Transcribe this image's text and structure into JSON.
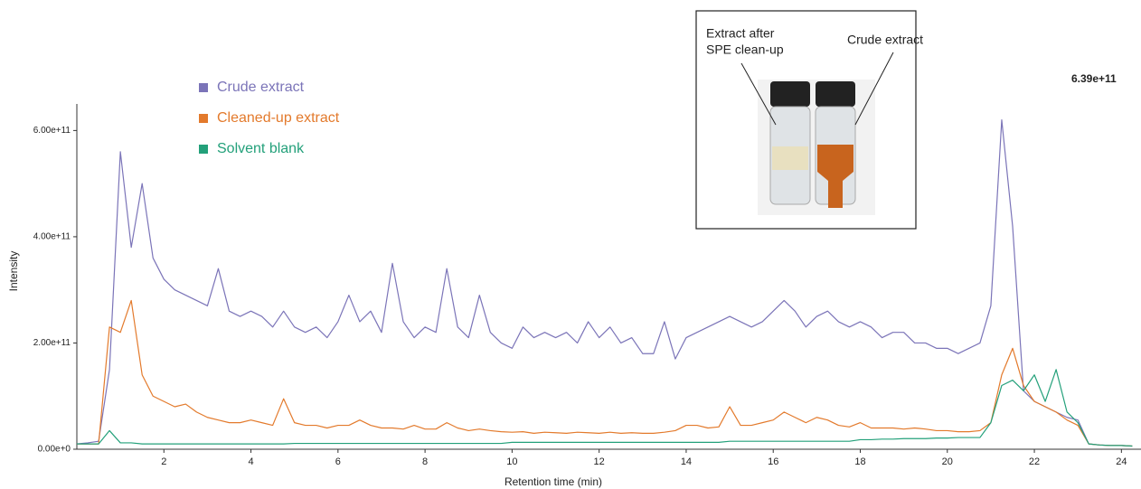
{
  "chart_data": {
    "type": "line",
    "x_label": "Retention time (min)",
    "y_label": "Intensity",
    "annotations": [
      "6.39e+11",
      "Extract after",
      "SPE clean-up",
      "Crude extract"
    ],
    "legend": "upper left",
    "x": [
      0,
      0.25,
      0.5,
      0.75,
      1,
      1.25,
      1.5,
      1.75,
      2,
      2.25,
      2.5,
      2.75,
      3,
      3.25,
      3.5,
      3.75,
      4,
      4.25,
      4.5,
      4.75,
      5,
      5.25,
      5.5,
      5.75,
      6,
      6.25,
      6.5,
      6.75,
      7,
      7.25,
      7.5,
      7.75,
      8,
      8.25,
      8.5,
      8.75,
      9,
      9.25,
      9.5,
      9.75,
      10,
      10.25,
      10.5,
      10.75,
      11,
      11.25,
      11.5,
      11.75,
      12,
      12.25,
      12.5,
      12.75,
      13,
      13.25,
      13.5,
      13.75,
      14,
      14.25,
      14.5,
      14.75,
      15,
      15.25,
      15.5,
      15.75,
      16,
      16.25,
      16.5,
      16.75,
      17,
      17.25,
      17.5,
      17.75,
      18,
      18.25,
      18.5,
      18.75,
      19,
      19.25,
      19.5,
      19.75,
      20,
      20.25,
      20.5,
      20.75,
      21,
      21.25,
      21.5,
      21.75,
      22,
      22.25,
      22.5,
      22.75,
      23,
      23.25,
      23.5,
      23.75,
      24,
      24.25
    ],
    "series": [
      {
        "name": "Crude extract",
        "color": "#7b74b8",
        "values": [
          10000000000.0,
          12000000000.0,
          15000000000.0,
          150000000000.0,
          560000000000.0,
          380000000000.0,
          500000000000.0,
          360000000000.0,
          320000000000.0,
          300000000000.0,
          290000000000.0,
          280000000000.0,
          270000000000.0,
          340000000000.0,
          260000000000.0,
          250000000000.0,
          260000000000.0,
          250000000000.0,
          230000000000.0,
          260000000000.0,
          230000000000.0,
          220000000000.0,
          230000000000.0,
          210000000000.0,
          240000000000.0,
          290000000000.0,
          240000000000.0,
          260000000000.0,
          220000000000.0,
          350000000000.0,
          240000000000.0,
          210000000000.0,
          230000000000.0,
          220000000000.0,
          340000000000.0,
          230000000000.0,
          210000000000.0,
          290000000000.0,
          220000000000.0,
          200000000000.0,
          190000000000.0,
          230000000000.0,
          210000000000.0,
          220000000000.0,
          210000000000.0,
          220000000000.0,
          200000000000.0,
          240000000000.0,
          210000000000.0,
          230000000000.0,
          200000000000.0,
          210000000000.0,
          180000000000.0,
          180000000000.0,
          240000000000.0,
          170000000000.0,
          210000000000.0,
          220000000000.0,
          230000000000.0,
          240000000000.0,
          250000000000.0,
          240000000000.0,
          230000000000.0,
          240000000000.0,
          260000000000.0,
          280000000000.0,
          260000000000.0,
          230000000000.0,
          250000000000.0,
          260000000000.0,
          240000000000.0,
          230000000000.0,
          240000000000.0,
          230000000000.0,
          210000000000.0,
          220000000000.0,
          220000000000.0,
          200000000000.0,
          200000000000.0,
          190000000000.0,
          190000000000.0,
          180000000000.0,
          190000000000.0,
          200000000000.0,
          270000000000.0,
          620000000000.0,
          420000000000.0,
          110000000000.0,
          90000000000.0,
          80000000000.0,
          70000000000.0,
          60000000000.0,
          55000000000.0,
          10000000000.0,
          8000000000.0,
          7000000000.0,
          7000000000.0,
          6000000000.0
        ]
      },
      {
        "name": "Cleaned-up extract",
        "color": "#e37a2c",
        "values": [
          10000000000.0,
          10000000000.0,
          10000000000.0,
          230000000000.0,
          220000000000.0,
          280000000000.0,
          140000000000.0,
          100000000000.0,
          90000000000.0,
          80000000000.0,
          85000000000.0,
          70000000000.0,
          60000000000.0,
          55000000000.0,
          50000000000.0,
          50000000000.0,
          55000000000.0,
          50000000000.0,
          45000000000.0,
          95000000000.0,
          50000000000.0,
          45000000000.0,
          45000000000.0,
          40000000000.0,
          45000000000.0,
          45000000000.0,
          55000000000.0,
          45000000000.0,
          40000000000.0,
          40000000000.0,
          38000000000.0,
          45000000000.0,
          38000000000.0,
          38000000000.0,
          50000000000.0,
          40000000000.0,
          35000000000.0,
          38000000000.0,
          35000000000.0,
          33000000000.0,
          32000000000.0,
          33000000000.0,
          30000000000.0,
          32000000000.0,
          31000000000.0,
          30000000000.0,
          32000000000.0,
          31000000000.0,
          30000000000.0,
          32000000000.0,
          30000000000.0,
          31000000000.0,
          30000000000.0,
          30000000000.0,
          32000000000.0,
          35000000000.0,
          45000000000.0,
          45000000000.0,
          40000000000.0,
          42000000000.0,
          80000000000.0,
          45000000000.0,
          45000000000.0,
          50000000000.0,
          55000000000.0,
          70000000000.0,
          60000000000.0,
          50000000000.0,
          60000000000.0,
          55000000000.0,
          45000000000.0,
          42000000000.0,
          50000000000.0,
          40000000000.0,
          40000000000.0,
          40000000000.0,
          38000000000.0,
          40000000000.0,
          38000000000.0,
          35000000000.0,
          35000000000.0,
          33000000000.0,
          33000000000.0,
          35000000000.0,
          50000000000.0,
          140000000000.0,
          190000000000.0,
          120000000000.0,
          90000000000.0,
          80000000000.0,
          70000000000.0,
          55000000000.0,
          45000000000.0,
          10000000000.0,
          8000000000.0,
          7000000000.0,
          7000000000.0,
          6000000000.0
        ]
      },
      {
        "name": "Solvent blank",
        "color": "#23a07a",
        "values": [
          10000000000.0,
          10000000000.0,
          10000000000.0,
          35000000000.0,
          12000000000.0,
          12000000000.0,
          10000000000.0,
          10000000000.0,
          10000000000.0,
          10000000000.0,
          10000000000.0,
          10000000000.0,
          10000000000.0,
          10000000000.0,
          10000000000.0,
          10000000000.0,
          10000000000.0,
          10000000000.0,
          10000000000.0,
          10000000000.0,
          11000000000.0,
          11000000000.0,
          11000000000.0,
          11000000000.0,
          11000000000.0,
          11000000000.0,
          11000000000.0,
          11000000000.0,
          11000000000.0,
          11000000000.0,
          11000000000.0,
          11000000000.0,
          11000000000.0,
          11000000000.0,
          11000000000.0,
          11000000000.0,
          11000000000.0,
          11000000000.0,
          11000000000.0,
          11000000000.0,
          13000000000.0,
          13000000000.0,
          13000000000.0,
          13000000000.0,
          13000000000.0,
          13000000000.0,
          13000000000.0,
          13000000000.0,
          13000000000.0,
          13000000000.0,
          13000000000.0,
          13000000000.0,
          13000000000.0,
          13000000000.0,
          13000000000.0,
          13000000000.0,
          13000000000.0,
          13000000000.0,
          13000000000.0,
          13000000000.0,
          15000000000.0,
          15000000000.0,
          15000000000.0,
          15000000000.0,
          15000000000.0,
          15000000000.0,
          15000000000.0,
          15000000000.0,
          15000000000.0,
          15000000000.0,
          15000000000.0,
          15000000000.0,
          18000000000.0,
          18000000000.0,
          19000000000.0,
          19000000000.0,
          20000000000.0,
          20000000000.0,
          20000000000.0,
          21000000000.0,
          21000000000.0,
          22000000000.0,
          22000000000.0,
          22000000000.0,
          50000000000.0,
          120000000000.0,
          130000000000.0,
          110000000000.0,
          140000000000.0,
          90000000000.0,
          150000000000.0,
          70000000000.0,
          50000000000.0,
          10000000000.0,
          8000000000.0,
          7000000000.0,
          7000000000.0,
          6000000000.0
        ]
      }
    ],
    "xlim": [
      0,
      24.45
    ],
    "xticks": [
      2,
      4,
      6,
      8,
      10,
      12,
      14,
      16,
      18,
      20,
      22,
      24
    ],
    "ylim": [
      0,
      650000000000.0
    ],
    "yticks": [
      {
        "value": 0,
        "label": "0.00e+0"
      },
      {
        "value": 200000000000.0,
        "label": "2.00e+11"
      },
      {
        "value": 400000000000.0,
        "label": "4.00e+11"
      },
      {
        "value": 600000000000.0,
        "label": "6.00e+11"
      }
    ]
  }
}
